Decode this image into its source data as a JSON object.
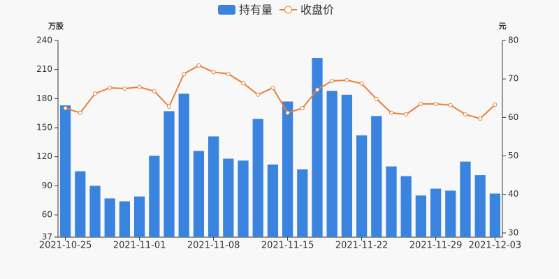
{
  "chart_data": {
    "type": "bar-line",
    "y_label": "万股",
    "y2_label": "元",
    "categories": [
      "2021-10-25",
      null,
      null,
      null,
      null,
      "2021-11-01",
      null,
      null,
      null,
      null,
      "2021-11-08",
      null,
      null,
      null,
      null,
      "2021-11-15",
      null,
      null,
      null,
      null,
      "2021-11-22",
      null,
      null,
      null,
      null,
      "2021-11-29",
      null,
      null,
      null,
      "2021-12-03"
    ],
    "series": [
      {
        "name": "持有量",
        "type": "bar",
        "color": "#3a84e0",
        "values": [
          173,
          105,
          90,
          77,
          74,
          79,
          121,
          167,
          185,
          126,
          141,
          118,
          116,
          159,
          112,
          177,
          107,
          222,
          188,
          184,
          142,
          162,
          110,
          100,
          80,
          87,
          85,
          115,
          101,
          82
        ]
      },
      {
        "name": "收盘价",
        "type": "line",
        "axis": "y2",
        "color": "#e8803a",
        "values": [
          62.4,
          61.2,
          66.2,
          67.7,
          67.5,
          67.9,
          66.8,
          62.8,
          71.3,
          73.5,
          71.8,
          71.3,
          68.9,
          65.9,
          67.7,
          61.2,
          62.4,
          67.2,
          69.5,
          69.7,
          68.8,
          64.8,
          61.2,
          60.8,
          63.5,
          63.5,
          63.2,
          60.8,
          59.7,
          63.3
        ]
      }
    ],
    "ylim": [
      37,
      240
    ],
    "yticks": [
      37,
      60,
      90,
      120,
      150,
      180,
      210,
      240
    ],
    "y2lim": [
      28.9,
      80
    ],
    "y2ticks": [
      30,
      40,
      50,
      60,
      70,
      80
    ],
    "legend": "top"
  }
}
